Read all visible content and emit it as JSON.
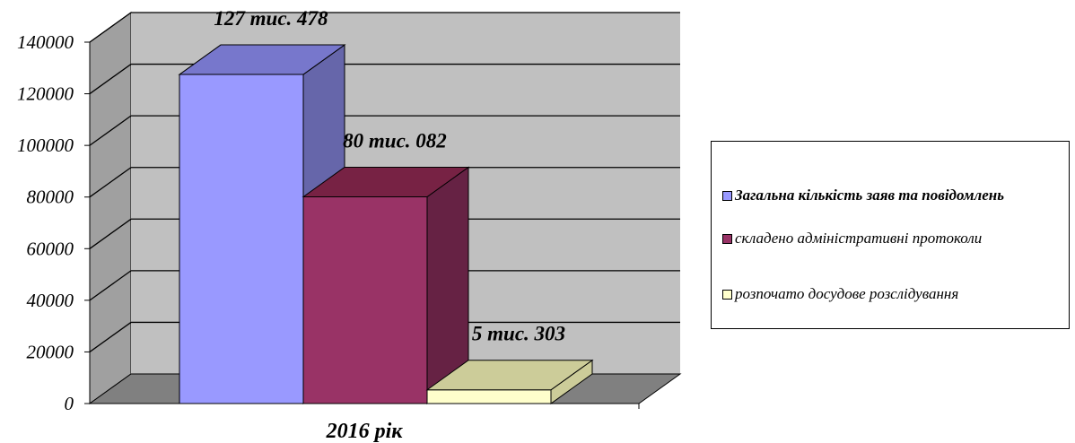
{
  "chart_data": {
    "type": "bar",
    "three_d": true,
    "categories": [
      "2016 рік"
    ],
    "series": [
      {
        "name": "Загальна кількість  заяв та повідомлень",
        "values": [
          127478
        ],
        "label": "127 тис. 478",
        "color": "#9999ff",
        "side_color": "#6666aa",
        "top_color": "#7777cc"
      },
      {
        "name": "складено адміністративні протоколи",
        "values": [
          80082
        ],
        "label": "80 тис. 082",
        "color": "#993366",
        "side_color": "#662244",
        "top_color": "#772244"
      },
      {
        "name": "розпочато досудове розслідування",
        "values": [
          5303
        ],
        "label": "5 тис. 303",
        "color": "#ffffcc",
        "side_color": "#cccc99",
        "top_color": "#cccc99"
      }
    ],
    "y_ticks": [
      "0",
      "20000",
      "40000",
      "60000",
      "80000",
      "100000",
      "120000",
      "140000"
    ],
    "ylim": [
      0,
      140000
    ],
    "grid": true,
    "wall_color": "#c0c0c0",
    "floor_color": "#808080",
    "legend_position": "right"
  }
}
